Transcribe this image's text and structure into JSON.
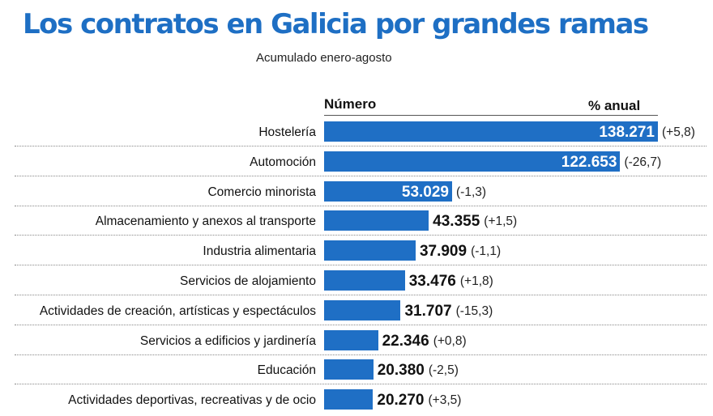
{
  "title": "Los contratos en Galicia por grandes ramas",
  "subtitle": "Acumulado enero-agosto",
  "header": {
    "number": "Número",
    "pct": "% anual"
  },
  "colors": {
    "title": "#1e6fc4",
    "bar": "#1f6fc5"
  },
  "chart_data": {
    "type": "bar",
    "orientation": "horizontal",
    "title": "Los contratos en Galicia por grandes ramas",
    "subtitle": "Acumulado enero-agosto",
    "categories": [
      "Hostelería",
      "Automoción",
      "Comercio minorista",
      "Almacenamiento y anexos al transporte",
      "Industria alimentaria",
      "Servicios de alojamiento",
      "Actividades de creación, artísticas y espectáculos",
      "Servicios a edificios y jardinería",
      "Educación",
      "Actividades deportivas, recreativas y de ocio"
    ],
    "values": [
      138271,
      122653,
      53029,
      43355,
      37909,
      33476,
      31707,
      22346,
      20380,
      20270
    ],
    "value_labels": [
      "138.271",
      "122.653",
      "53.029",
      "43.355",
      "37.909",
      "33.476",
      "31.707",
      "22.346",
      "20.380",
      "20.270"
    ],
    "changes": [
      "(+5,8)",
      "(-26,7)",
      "(-1,3)",
      "(+1,5)",
      "(-1,1)",
      "(+1,8)",
      "(-15,3)",
      "(+0,8)",
      "(-2,5)",
      "(+3,5)"
    ],
    "column_headers": [
      "Número",
      "% anual"
    ],
    "grid": false,
    "legend": "none"
  }
}
